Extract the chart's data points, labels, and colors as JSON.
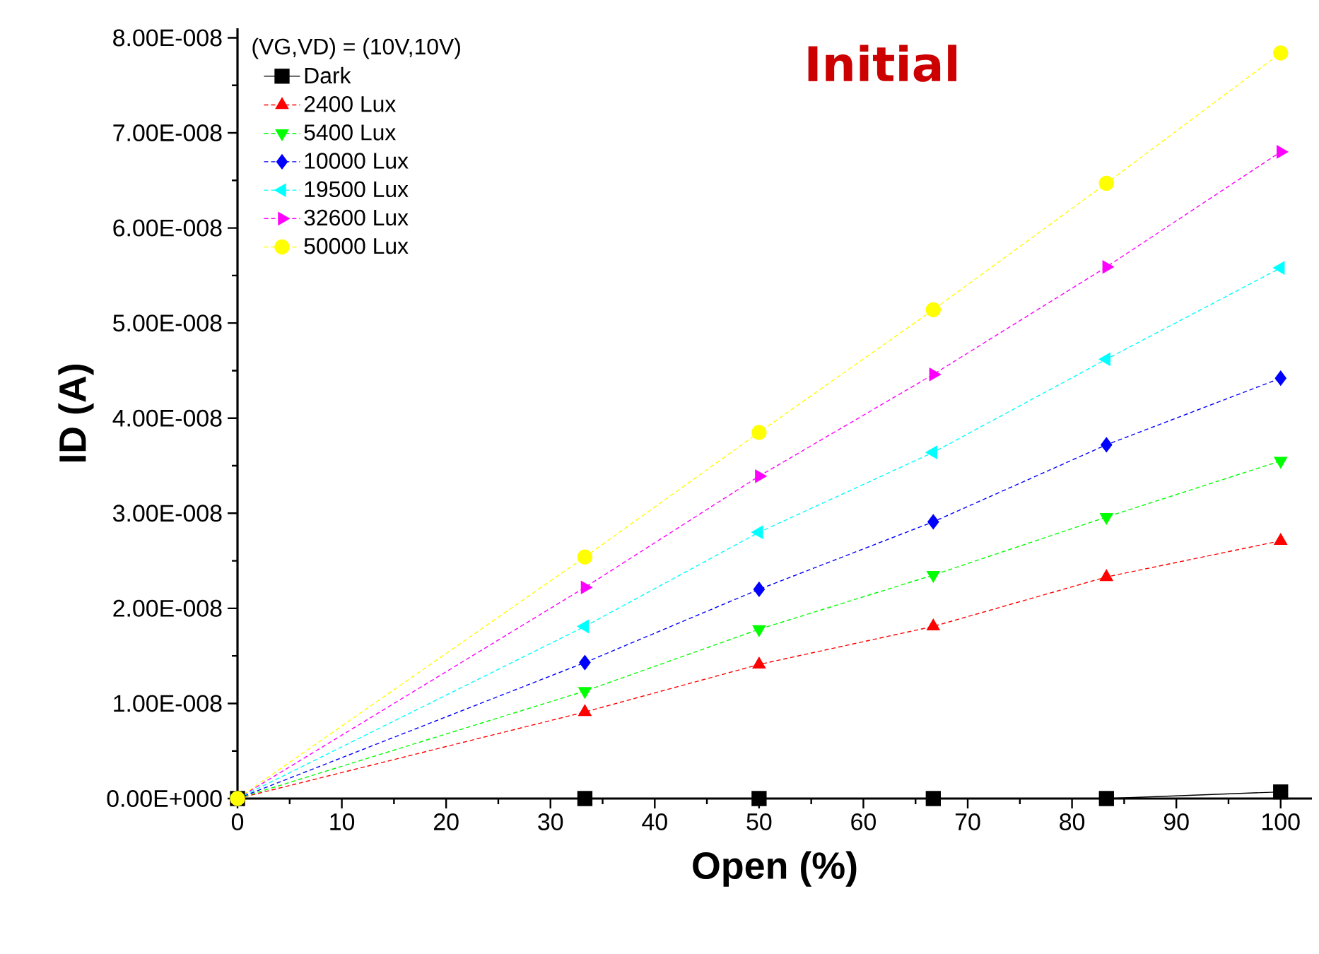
{
  "chart_data": {
    "type": "line",
    "title": "Initial",
    "xlabel": "Open (%)",
    "ylabel": "ID (A)",
    "legend_title": "(VG,VD) = (10V,10V)",
    "x": [
      0,
      33.3,
      50,
      66.7,
      83.3,
      100
    ],
    "series": [
      {
        "name": "Dark",
        "color": "#000000",
        "marker": "square",
        "line_style": "solid",
        "values": [
          0,
          0,
          0,
          0,
          0,
          7e-10
        ]
      },
      {
        "name": "2400 Lux",
        "color": "#ff0000",
        "marker": "triangle",
        "line_style": "dashed",
        "values": [
          0,
          9.1e-09,
          1.41e-08,
          1.81e-08,
          2.33e-08,
          2.71e-08
        ]
      },
      {
        "name": "5400 Lux",
        "color": "#00ff00",
        "marker": "triangle",
        "line_style": "dashed",
        "values": [
          0,
          1.13e-08,
          1.78e-08,
          2.35e-08,
          2.96e-08,
          3.55e-08
        ]
      },
      {
        "name": "10000 Lux",
        "color": "#0000ff",
        "marker": "diamond",
        "line_style": "dashed",
        "values": [
          0,
          1.43e-08,
          2.2e-08,
          2.91e-08,
          3.72e-08,
          4.42e-08
        ]
      },
      {
        "name": "19500 Lux",
        "color": "#00ffff",
        "marker": "triangle",
        "line_style": "dashed",
        "values": [
          0,
          1.81e-08,
          2.8e-08,
          3.64e-08,
          4.62e-08,
          5.58e-08
        ]
      },
      {
        "name": "32600 Lux",
        "color": "#ff00ff",
        "marker": "triangle",
        "line_style": "dashed",
        "values": [
          0,
          2.22e-08,
          3.39e-08,
          4.46e-08,
          5.59e-08,
          6.8e-08
        ]
      },
      {
        "name": "50000 Lux",
        "color": "#ffff00",
        "marker": "circle",
        "line_style": "dashed",
        "values": [
          0,
          2.54e-08,
          3.85e-08,
          5.14e-08,
          6.47e-08,
          7.84e-08
        ]
      }
    ],
    "xlim": [
      0,
      103
    ],
    "ylim": [
      0,
      8.1e-08
    ],
    "xticks": [
      0,
      10,
      20,
      30,
      40,
      50,
      60,
      70,
      80,
      90,
      100
    ],
    "yticks": [
      {
        "value": 0,
        "label": "0.00E+000"
      },
      {
        "value": 1e-08,
        "label": "1.00E-008"
      },
      {
        "value": 2e-08,
        "label": "2.00E-008"
      },
      {
        "value": 3e-08,
        "label": "3.00E-008"
      },
      {
        "value": 4e-08,
        "label": "4.00E-008"
      },
      {
        "value": 5e-08,
        "label": "5.00E-008"
      },
      {
        "value": 6e-08,
        "label": "6.00E-008"
      },
      {
        "value": 7e-08,
        "label": "7.00E-008"
      },
      {
        "value": 8e-08,
        "label": "8.00E-008"
      }
    ],
    "grid": false,
    "legend": "top left"
  }
}
